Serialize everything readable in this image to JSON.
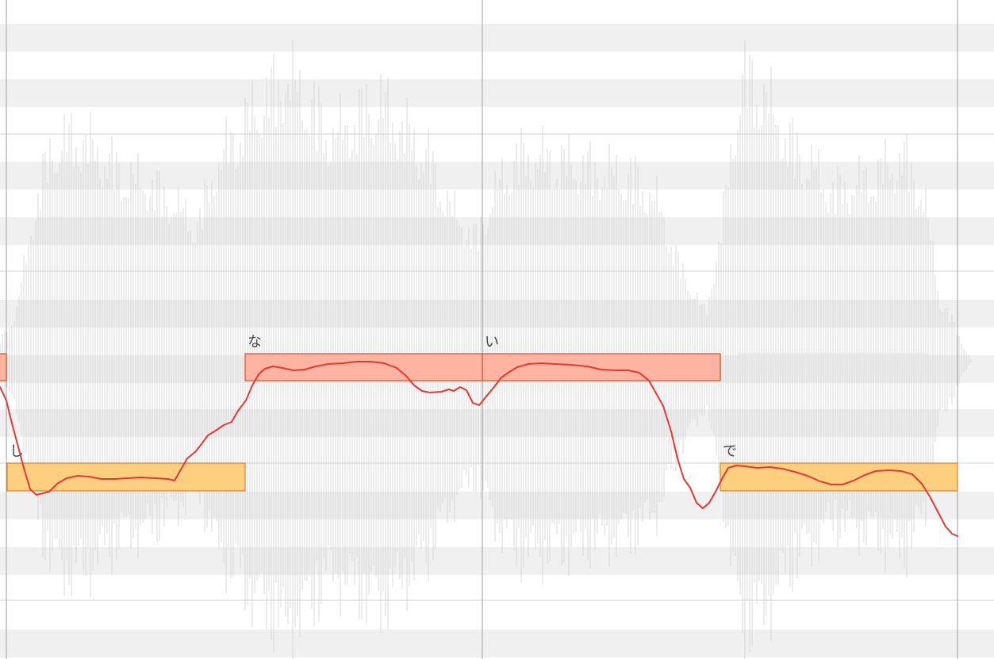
{
  "editor": {
    "colors": {
      "background": "#ffffff",
      "row_stripe": "#f0f0f0",
      "octave_line": "#d0d0d0",
      "bar_line": "#9e9e9e",
      "waveform": "#cfcfcf",
      "pitch_curve": "#e53935",
      "note_high_fill": "#ffb3a1",
      "note_high_border": "#d0532e",
      "note_low_fill": "#ffcf80",
      "note_low_border": "#d9822b"
    },
    "notes": [
      {
        "lyric": "",
        "level": "high"
      },
      {
        "lyric": "し",
        "level": "low"
      },
      {
        "lyric": "な",
        "level": "high"
      },
      {
        "lyric": "い",
        "level": "high"
      },
      {
        "lyric": "で",
        "level": "low"
      }
    ]
  }
}
